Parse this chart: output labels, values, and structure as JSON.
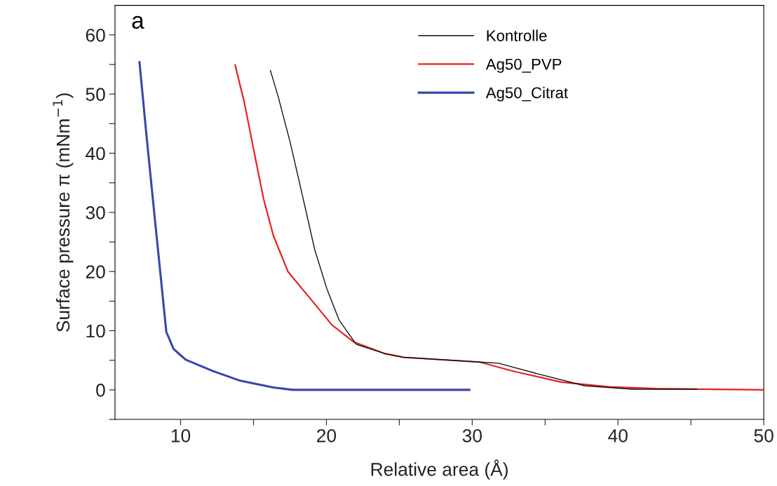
{
  "chart_data": {
    "type": "line",
    "xlabel": "Relative area (Å)",
    "ylabel": "Surface pressure π (mNm$^{−1}$)",
    "annotations": [
      "a"
    ],
    "xlim": [
      5.5,
      50
    ],
    "ylim": [
      -5,
      65
    ],
    "xticks": [
      10,
      {
        "value": 15,
        "label": null
      },
      20,
      {
        "value": 25,
        "label": null
      },
      30,
      {
        "value": 35,
        "label": null
      },
      40,
      {
        "value": 45,
        "label": null
      },
      50
    ],
    "yticks": [
      {
        "value": -5,
        "label": null
      },
      0,
      {
        "value": 5,
        "label": null
      },
      10,
      {
        "value": 15,
        "label": null
      },
      20,
      {
        "value": 25,
        "label": null
      },
      30,
      {
        "value": 35,
        "label": null
      },
      40,
      {
        "value": 45,
        "label": null
      },
      50,
      {
        "value": 55,
        "label": null
      },
      60
    ],
    "grid": false,
    "legend": "top right",
    "marker": "none",
    "line_style": "solid",
    "series": [
      {
        "name": "Kontrolle",
        "color": "#111111",
        "x": [
          16.16,
          16.7,
          17.53,
          18.37,
          19.2,
          20.03,
          20.87,
          22.04,
          24.04,
          25.3,
          30.5,
          31.8,
          32.1,
          34.5,
          37.7,
          41,
          45.4
        ],
        "values": [
          54.0,
          49.5,
          41.7,
          32.7,
          23.7,
          17.1,
          11.8,
          7.7,
          6.1,
          5.5,
          4.7,
          4.5,
          4.3,
          2.7,
          0.7,
          0.1,
          0.1
        ]
      },
      {
        "name": "Ag50_PVP",
        "color": "#e8221e",
        "x": [
          13.74,
          14.36,
          15.19,
          15.69,
          16.36,
          17.36,
          18.87,
          20.37,
          21.87,
          24.04,
          25.3,
          30.5,
          32.9,
          36.1,
          39.4,
          42.6,
          50
        ],
        "values": [
          54.9,
          48.7,
          38.4,
          32.3,
          26.1,
          20.0,
          15.5,
          11.0,
          8.1,
          6.1,
          5.5,
          4.7,
          3.1,
          1.3,
          0.5,
          0.2,
          0
        ]
      },
      {
        "name": "Ag50_Citrat",
        "color": "#3a45a8",
        "x": [
          7.18,
          7.68,
          8.18,
          8.6,
          9.02,
          9.52,
          10.35,
          12.19,
          14.02,
          16.36,
          17.7,
          29.8
        ],
        "values": [
          55.4,
          42.5,
          30.2,
          20.0,
          9.8,
          6.9,
          5.1,
          3.2,
          1.6,
          0.4,
          0,
          0
        ]
      }
    ]
  }
}
